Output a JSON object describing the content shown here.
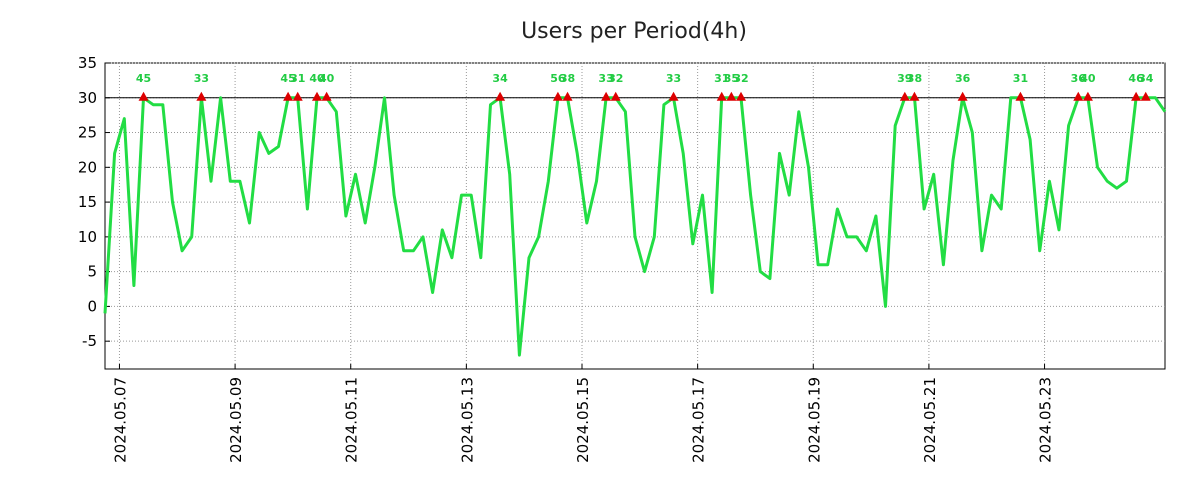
{
  "chart_data": {
    "type": "line",
    "title": "Users per Period(4h)",
    "xlabel": "",
    "ylabel": "",
    "ylim": [
      -9,
      35
    ],
    "yticks": [
      35,
      30,
      25,
      20,
      15,
      10,
      5,
      0,
      -5
    ],
    "xlim": [
      0,
      110
    ],
    "threshold": 30,
    "grid": true,
    "xticks": [
      {
        "x": 1.5,
        "label": "2024.05.07"
      },
      {
        "x": 13.5,
        "label": "2024.05.09"
      },
      {
        "x": 25.5,
        "label": "2024.05.11"
      },
      {
        "x": 37.5,
        "label": "2024.05.13"
      },
      {
        "x": 49.5,
        "label": "2024.05.15"
      },
      {
        "x": 61.5,
        "label": "2024.05.17"
      },
      {
        "x": 73.5,
        "label": "2024.05.19"
      },
      {
        "x": 85.5,
        "label": "2024.05.21"
      },
      {
        "x": 97.5,
        "label": "2024.05.23"
      }
    ],
    "series": [
      {
        "name": "Users",
        "color": "#22dd44",
        "x": [
          0,
          1,
          2,
          3,
          4,
          5,
          6,
          7,
          8,
          9,
          10,
          11,
          12,
          13,
          14,
          15,
          16,
          17,
          18,
          19,
          20,
          21,
          22,
          23,
          24,
          25,
          26,
          27,
          28,
          29,
          30,
          31,
          32,
          33,
          34,
          35,
          36,
          37,
          38,
          39,
          40,
          41,
          42,
          43,
          44,
          45,
          46,
          47,
          48,
          49,
          50,
          51,
          52,
          53,
          54,
          55,
          56,
          57,
          58,
          59,
          60,
          61,
          62,
          63,
          64,
          65,
          66,
          67,
          68,
          69,
          70,
          71,
          72,
          73,
          74,
          75,
          76,
          77,
          78,
          79,
          80,
          81,
          82,
          83,
          84,
          85,
          86,
          87,
          88,
          89,
          90,
          91,
          92,
          93,
          94,
          95,
          96,
          97,
          98,
          99,
          100,
          101,
          102,
          103,
          104,
          105,
          106,
          107,
          108,
          109,
          110
        ],
        "values": [
          -1,
          22,
          27,
          3,
          30,
          29,
          29,
          15,
          8,
          10,
          30,
          18,
          30,
          18,
          18,
          12,
          25,
          22,
          23,
          30,
          30,
          14,
          30,
          30,
          28,
          13,
          19,
          12,
          20,
          30,
          16,
          8,
          8,
          10,
          2,
          11,
          7,
          16,
          16,
          7,
          29,
          30,
          19,
          -7,
          7,
          10,
          18,
          30,
          30,
          22,
          12,
          18,
          30,
          30,
          28,
          10,
          5,
          10,
          29,
          30,
          22,
          9,
          16,
          2,
          30,
          30,
          30,
          16,
          5,
          4,
          22,
          16,
          28,
          20,
          6,
          6,
          14,
          10,
          10,
          8,
          13,
          0,
          26,
          30,
          30,
          14,
          19,
          6,
          21,
          30,
          25,
          8,
          16,
          14,
          30,
          30,
          24,
          8,
          18,
          11,
          26,
          30,
          30,
          20,
          18,
          17,
          18,
          30,
          30,
          30,
          28
        ]
      }
    ],
    "peaks": [
      {
        "x": 4,
        "y": 30,
        "label": "45"
      },
      {
        "x": 10,
        "y": 30,
        "label": "33"
      },
      {
        "x": 19,
        "y": 30,
        "label": "45"
      },
      {
        "x": 20,
        "y": 30,
        "label": "31"
      },
      {
        "x": 22,
        "y": 30,
        "label": "40"
      },
      {
        "x": 23,
        "y": 30,
        "label": "40"
      },
      {
        "x": 41,
        "y": 30,
        "label": "34"
      },
      {
        "x": 47,
        "y": 30,
        "label": "56"
      },
      {
        "x": 48,
        "y": 30,
        "label": "38"
      },
      {
        "x": 52,
        "y": 30,
        "label": "33"
      },
      {
        "x": 53,
        "y": 30,
        "label": "32"
      },
      {
        "x": 59,
        "y": 30,
        "label": "33"
      },
      {
        "x": 64,
        "y": 30,
        "label": "31"
      },
      {
        "x": 65,
        "y": 30,
        "label": "35"
      },
      {
        "x": 66,
        "y": 30,
        "label": "32"
      },
      {
        "x": 83,
        "y": 30,
        "label": "39"
      },
      {
        "x": 84,
        "y": 30,
        "label": "38"
      },
      {
        "x": 89,
        "y": 30,
        "label": "36"
      },
      {
        "x": 95,
        "y": 30,
        "label": "31"
      },
      {
        "x": 101,
        "y": 30,
        "label": "36"
      },
      {
        "x": 102,
        "y": 30,
        "label": "40"
      },
      {
        "x": 107,
        "y": 30,
        "label": "46"
      },
      {
        "x": 108,
        "y": 30,
        "label": "34"
      }
    ],
    "colors": {
      "line": "#22dd44",
      "marker": "#dd0000",
      "peak_label": "#22cc44",
      "threshold": "#000000",
      "grid": "#999999"
    }
  }
}
